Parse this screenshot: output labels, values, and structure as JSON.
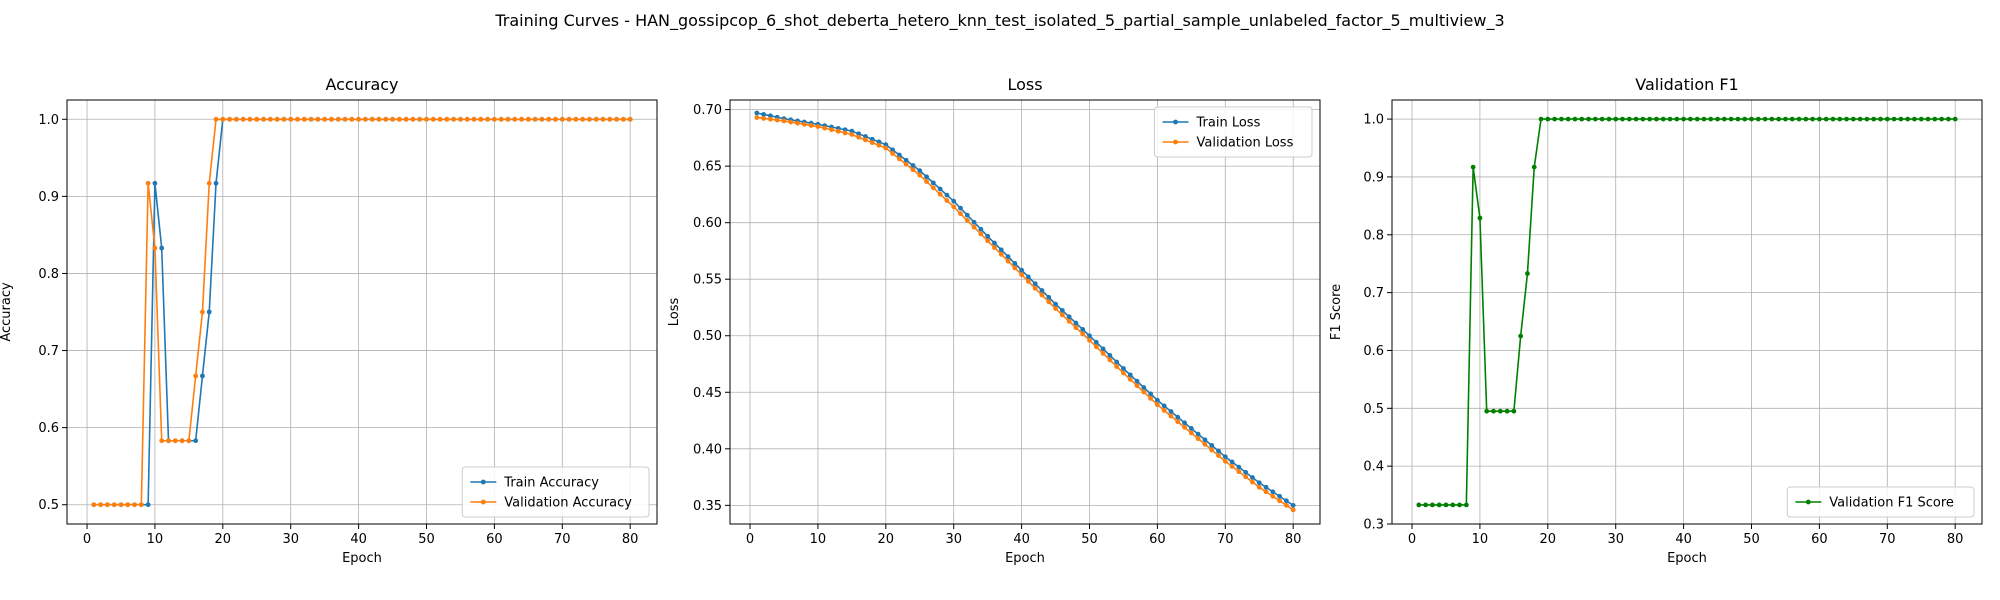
{
  "suptitle": "Training Curves - HAN_gossipcop_6_shot_deberta_hetero_knn_test_isolated_5_partial_sample_unlabeled_factor_5_multiview_3",
  "colors": {
    "blue": "#1f77b4",
    "orange": "#ff7f0e",
    "green": "#008000",
    "grid": "#b0b0b0"
  },
  "chart_data": [
    {
      "type": "line",
      "title": "Accuracy",
      "xlabel": "Epoch",
      "ylabel": "Accuracy",
      "xlim": [
        -2.95,
        83.95
      ],
      "ylim": [
        0.475,
        1.025
      ],
      "xticks": [
        0,
        10,
        20,
        30,
        40,
        50,
        60,
        70,
        80
      ],
      "yticks": [
        0.5,
        0.6,
        0.7,
        0.8,
        0.9,
        1.0
      ],
      "ytick_labels": [
        "0.5",
        "0.6",
        "0.7",
        "0.8",
        "0.9",
        "1.0"
      ],
      "grid": true,
      "legend_loc": "lower-right",
      "epochs": {
        "start": 1,
        "end": 80
      },
      "series": [
        {
          "name": "Train Accuracy",
          "color": "blue",
          "segments": [
            [
              1,
              0.5
            ],
            [
              8,
              0.5
            ],
            [
              9,
              0.5
            ],
            [
              10,
              0.917
            ],
            [
              11,
              0.833
            ],
            [
              12,
              0.583
            ],
            [
              15,
              0.583
            ],
            [
              16,
              0.583
            ],
            [
              17,
              0.667
            ],
            [
              18,
              0.75
            ],
            [
              19,
              0.917
            ],
            [
              20,
              1.0
            ],
            [
              80,
              1.0
            ]
          ]
        },
        {
          "name": "Validation Accuracy",
          "color": "orange",
          "segments": [
            [
              1,
              0.5
            ],
            [
              8,
              0.5
            ],
            [
              9,
              0.917
            ],
            [
              10,
              0.833
            ],
            [
              11,
              0.583
            ],
            [
              15,
              0.583
            ],
            [
              16,
              0.667
            ],
            [
              17,
              0.75
            ],
            [
              18,
              0.917
            ],
            [
              19,
              1.0
            ],
            [
              80,
              1.0
            ]
          ]
        }
      ]
    },
    {
      "type": "line",
      "title": "Loss",
      "xlabel": "Epoch",
      "ylabel": "Loss",
      "xlim": [
        -2.95,
        83.95
      ],
      "ylim": [
        0.3335,
        0.7085
      ],
      "xticks": [
        0,
        10,
        20,
        30,
        40,
        50,
        60,
        70,
        80
      ],
      "yticks": [
        0.35,
        0.4,
        0.45,
        0.5,
        0.55,
        0.6,
        0.65,
        0.7
      ],
      "ytick_labels": [
        "0.35",
        "0.40",
        "0.45",
        "0.50",
        "0.55",
        "0.60",
        "0.65",
        "0.70"
      ],
      "grid": true,
      "legend_loc": "top-right",
      "epochs": {
        "start": 1,
        "end": 80
      },
      "series": [
        {
          "name": "Train Loss",
          "color": "blue",
          "segments": [
            [
              1,
              0.697
            ],
            [
              5,
              0.692
            ],
            [
              10,
              0.687
            ],
            [
              15,
              0.681
            ],
            [
              20,
              0.669
            ],
            [
              25,
              0.646
            ],
            [
              30,
              0.619
            ],
            [
              35,
              0.588
            ],
            [
              40,
              0.558
            ],
            [
              45,
              0.528
            ],
            [
              50,
              0.5
            ],
            [
              55,
              0.471
            ],
            [
              60,
              0.443
            ],
            [
              65,
              0.418
            ],
            [
              70,
              0.393
            ],
            [
              75,
              0.37
            ],
            [
              80,
              0.35
            ]
          ]
        },
        {
          "name": "Validation Loss",
          "color": "orange",
          "segments": [
            [
              1,
              0.693
            ],
            [
              5,
              0.69
            ],
            [
              10,
              0.685
            ],
            [
              15,
              0.678
            ],
            [
              20,
              0.666
            ],
            [
              25,
              0.642
            ],
            [
              30,
              0.614
            ],
            [
              35,
              0.584
            ],
            [
              40,
              0.554
            ],
            [
              45,
              0.524
            ],
            [
              50,
              0.496
            ],
            [
              55,
              0.467
            ],
            [
              60,
              0.439
            ],
            [
              65,
              0.414
            ],
            [
              70,
              0.389
            ],
            [
              75,
              0.366
            ],
            [
              80,
              0.346
            ]
          ]
        }
      ]
    },
    {
      "type": "line",
      "title": "Validation F1",
      "xlabel": "Epoch",
      "ylabel": "F1 Score",
      "xlim": [
        -2.95,
        83.95
      ],
      "ylim": [
        0.3,
        1.033
      ],
      "xticks": [
        0,
        10,
        20,
        30,
        40,
        50,
        60,
        70,
        80
      ],
      "yticks": [
        0.3,
        0.4,
        0.5,
        0.6,
        0.7,
        0.8,
        0.9,
        1.0
      ],
      "ytick_labels": [
        "0.3",
        "0.4",
        "0.5",
        "0.6",
        "0.7",
        "0.8",
        "0.9",
        "1.0"
      ],
      "grid": true,
      "legend_loc": "lower-right",
      "epochs": {
        "start": 1,
        "end": 80
      },
      "series": [
        {
          "name": "Validation F1 Score",
          "color": "green",
          "segments": [
            [
              1,
              0.333
            ],
            [
              8,
              0.333
            ],
            [
              9,
              0.917
            ],
            [
              10,
              0.829
            ],
            [
              11,
              0.495
            ],
            [
              15,
              0.495
            ],
            [
              16,
              0.625
            ],
            [
              17,
              0.733
            ],
            [
              18,
              0.917
            ],
            [
              19,
              1.0
            ],
            [
              80,
              1.0
            ]
          ]
        }
      ]
    }
  ]
}
